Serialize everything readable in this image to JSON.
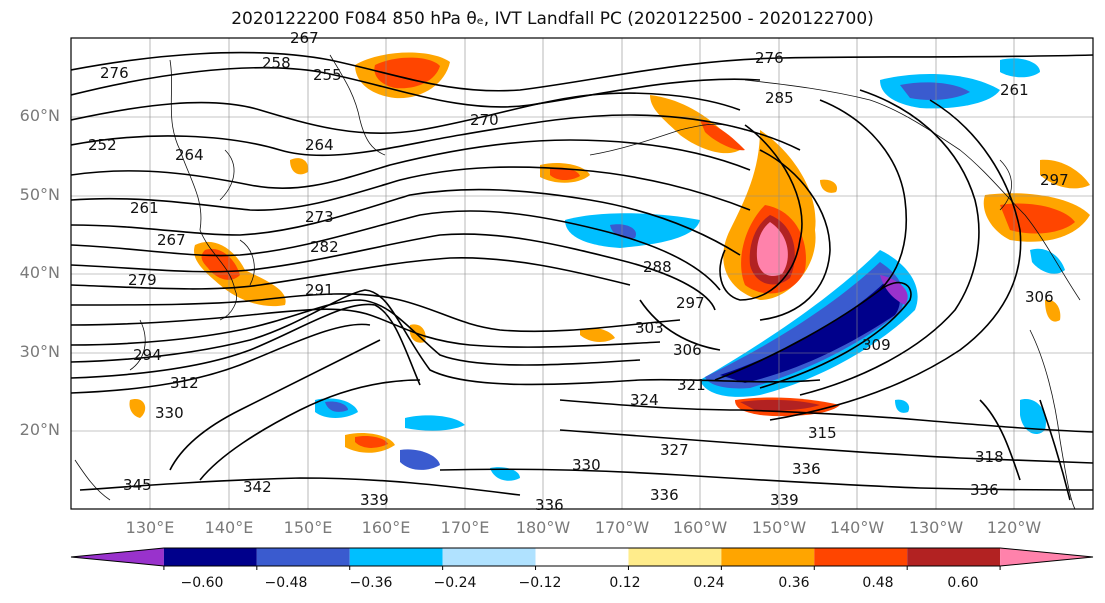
{
  "title": "2020122200 F084 850 hPa θₑ, IVT Landfall PC (2020122500 - 2020122700)",
  "lat_labels": [
    "60°N",
    "50°N",
    "40°N",
    "30°N",
    "20°N"
  ],
  "lon_labels": [
    "130°E",
    "140°E",
    "150°E",
    "160°E",
    "170°E",
    "180°W",
    "170°W",
    "160°W",
    "150°W",
    "140°W",
    "130°W",
    "120°W"
  ],
  "colorbar": {
    "ticks": [
      "−0.60",
      "−0.48",
      "−0.36",
      "−0.24",
      "−0.12",
      "0.12",
      "0.24",
      "0.36",
      "0.48",
      "0.60"
    ],
    "colors": [
      "#9932cc",
      "#00008b",
      "#3a5bcf",
      "#00bfff",
      "#b0e2ff",
      "#ffffff",
      "#ffec8b",
      "#ffa500",
      "#ff4500",
      "#b22222",
      "#ff82ab"
    ]
  },
  "contour_labels": [
    "267",
    "258",
    "255",
    "276",
    "285",
    "276",
    "264",
    "270",
    "261",
    "252",
    "264",
    "273",
    "282",
    "261",
    "267",
    "291",
    "288",
    "297",
    "279",
    "294",
    "303",
    "306",
    "309",
    "324",
    "321",
    "312",
    "330",
    "327",
    "336",
    "315",
    "330",
    "339",
    "336",
    "318",
    "345",
    "342",
    "339",
    "336",
    "336",
    "297",
    "306"
  ]
}
